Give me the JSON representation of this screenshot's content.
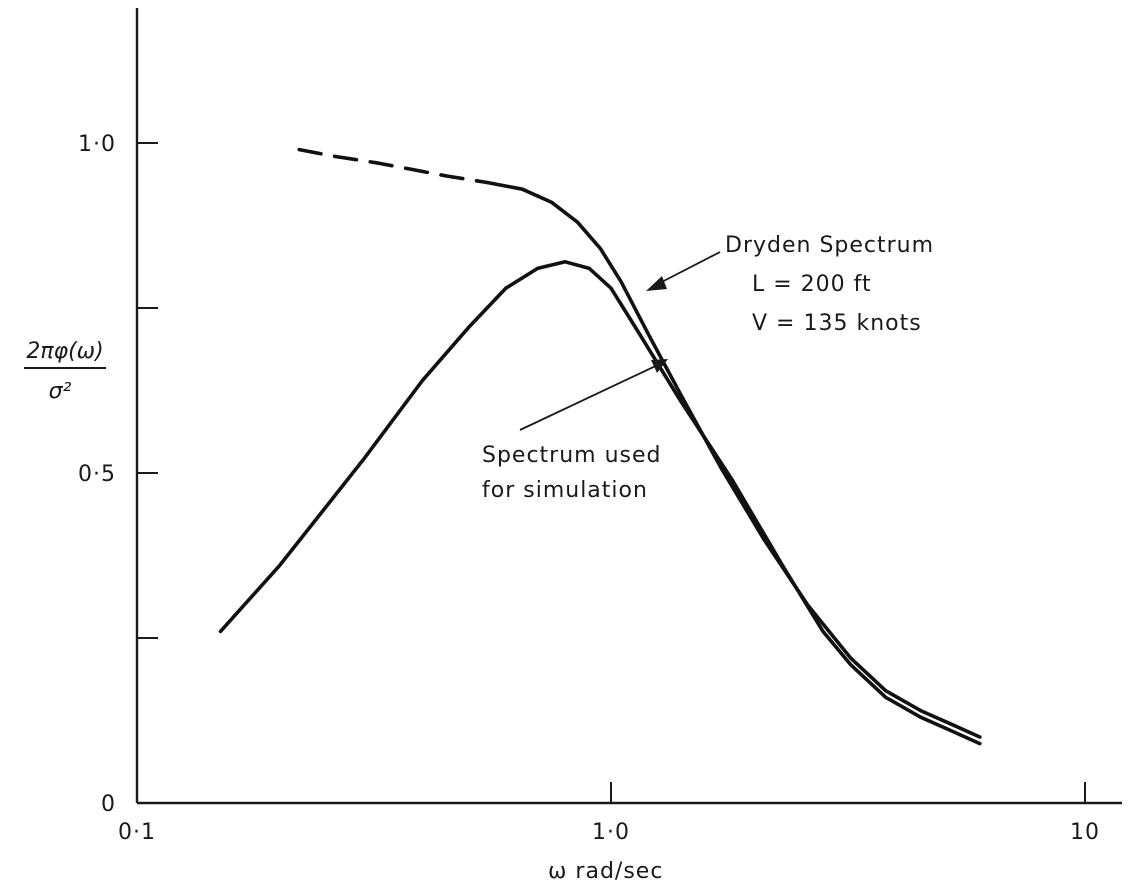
{
  "chart_data": {
    "type": "line",
    "x_scale": "log",
    "xlim": [
      0.1,
      10
    ],
    "ylim": [
      0,
      1.2
    ],
    "xlabel": "ω rad/sec",
    "ylabel_numerator": "2πφ(ω)",
    "ylabel_denominator": "σ²",
    "x_ticks": [
      {
        "value": 0.1,
        "label": "0·1"
      },
      {
        "value": 1.0,
        "label": "1·0"
      },
      {
        "value": 10,
        "label": "10"
      }
    ],
    "y_ticks": [
      {
        "value": 0,
        "label": "0"
      },
      {
        "value": 0.25,
        "label": ""
      },
      {
        "value": 0.5,
        "label": "0·5"
      },
      {
        "value": 0.75,
        "label": ""
      },
      {
        "value": 1.0,
        "label": "1·0"
      }
    ],
    "series": [
      {
        "name": "Dryden Spectrum",
        "dashed_x": [
          0.22,
          0.26,
          0.32,
          0.38,
          0.45,
          0.55
        ],
        "dashed_y": [
          0.99,
          0.98,
          0.97,
          0.96,
          0.95,
          0.94
        ],
        "x": [
          0.55,
          0.65,
          0.75,
          0.85,
          0.95,
          1.05,
          1.2,
          1.4,
          1.7,
          2.1,
          2.6,
          3.2,
          3.8,
          4.5,
          5.2,
          6.0
        ],
        "y": [
          0.94,
          0.93,
          0.91,
          0.88,
          0.84,
          0.79,
          0.71,
          0.62,
          0.51,
          0.4,
          0.3,
          0.22,
          0.17,
          0.14,
          0.12,
          0.1
        ]
      },
      {
        "name": "Spectrum used for simulation",
        "x": [
          0.15,
          0.2,
          0.3,
          0.4,
          0.5,
          0.6,
          0.7,
          0.8,
          0.9,
          1.0,
          1.15,
          1.4,
          1.8,
          2.3,
          2.8,
          3.2,
          3.8,
          4.5,
          5.2,
          6.0
        ],
        "y": [
          0.26,
          0.36,
          0.52,
          0.64,
          0.72,
          0.78,
          0.81,
          0.82,
          0.81,
          0.78,
          0.71,
          0.61,
          0.49,
          0.36,
          0.26,
          0.21,
          0.16,
          0.13,
          0.11,
          0.09
        ]
      }
    ],
    "annotations": [
      {
        "id": "dryden",
        "lines": [
          "Dryden Spectrum",
          "L = 200 ft",
          "V = 135 knots"
        ]
      },
      {
        "id": "simulation",
        "lines": [
          "Spectrum used",
          "for simulation"
        ]
      }
    ]
  }
}
